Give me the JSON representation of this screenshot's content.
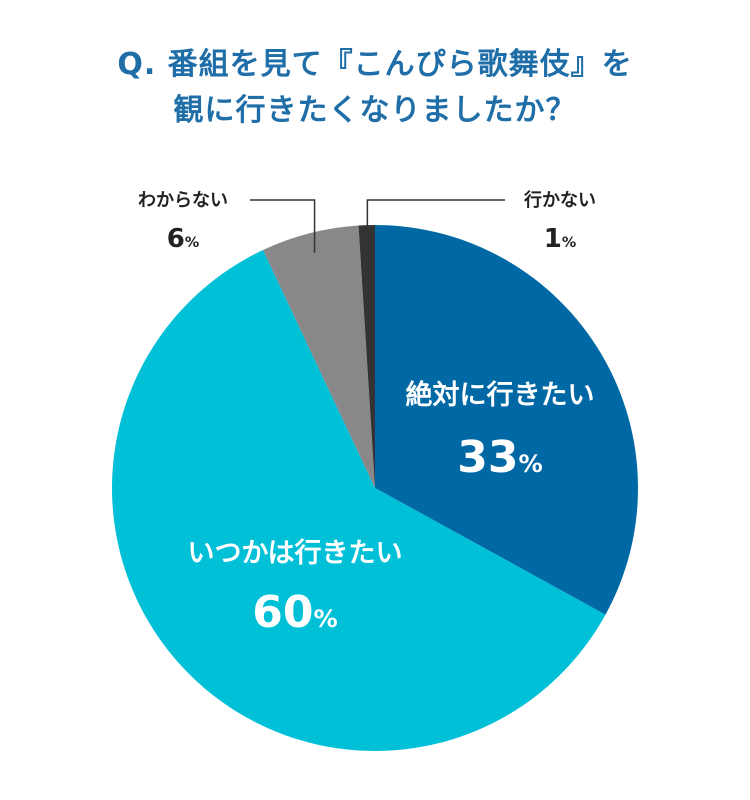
{
  "title": {
    "line1": "Q. 番組を見て『こんぴら歌舞伎』を",
    "line2": "観に行きたくなりましたか？"
  },
  "chart_data": {
    "type": "pie",
    "title": "Q. 番組を見て『こんぴら歌舞伎』を観に行きたくなりましたか？",
    "start_angle_deg": 0,
    "direction": "clockwise",
    "slices": [
      {
        "label": "絶対に行きたい",
        "value": 33,
        "unit": "%",
        "color": "#0069a5"
      },
      {
        "label": "いつかは行きたい",
        "value": 60,
        "unit": "%",
        "color": "#00c0d8"
      },
      {
        "label": "わからない",
        "value": 6,
        "unit": "%",
        "color": "#888888"
      },
      {
        "label": "行かない",
        "value": 1,
        "unit": "%",
        "color": "#333333"
      }
    ]
  }
}
